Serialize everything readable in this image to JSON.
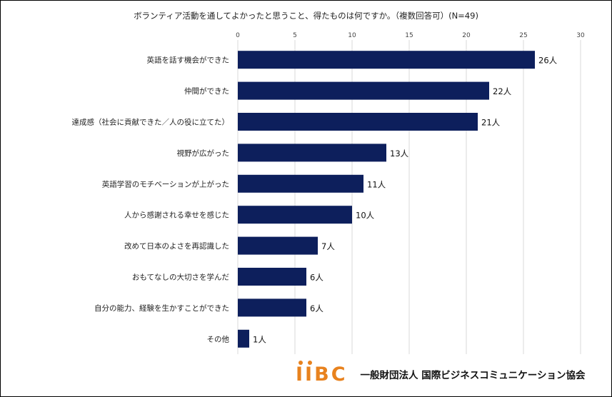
{
  "chart_data": {
    "type": "bar",
    "orientation": "horizontal",
    "title": "ボランティア活動を通してよかったと思うこと、得たものは何ですか。（複数回答可）(N=49)",
    "categories": [
      "英語を話す機会ができた",
      "仲間ができた",
      "達成感（社会に貢献できた／人の役に立てた）",
      "視野が広がった",
      "英語学習のモチベーションが上がった",
      "人から感謝される幸せを感じた",
      "改めて日本のよさを再認識した",
      "おもてなしの大切さを学んだ",
      "自分の能力、経験を生かすことができた",
      "その他"
    ],
    "values": [
      26,
      22,
      21,
      13,
      11,
      10,
      7,
      6,
      6,
      1
    ],
    "data_labels": [
      "26人",
      "22人",
      "21人",
      "13人",
      "11人",
      "10人",
      "7人",
      "6人",
      "6人",
      "1人"
    ],
    "xlim": [
      0,
      30
    ],
    "xticks": [
      "0",
      "5",
      "10",
      "15",
      "20",
      "25",
      "30"
    ],
    "grid": true,
    "bar_color": "#0d1f5c",
    "legend": "none"
  },
  "footer": {
    "logo_text": "IIBC",
    "logo_color": "#e8821e",
    "org_name": "一般財団法人 国際ビジネスコミュニケーション協会"
  }
}
